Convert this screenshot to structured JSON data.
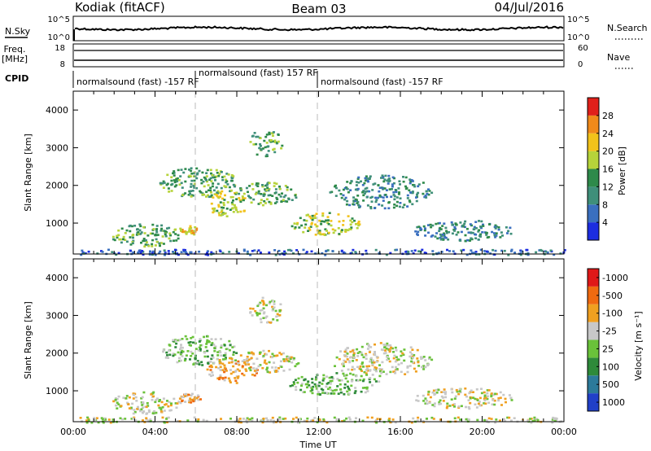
{
  "header": {
    "station": "Kodiak (fitACF)",
    "beam": "Beam 03",
    "date": "04/Jul/2016"
  },
  "top_panels": {
    "nsky": {
      "label": "N.Sky",
      "ticks": [
        "10^5",
        "10^0"
      ],
      "right_label": "N.Search",
      "right_ticks": [
        "10^5",
        "10^0"
      ]
    },
    "freq": {
      "label_line1": "Freq.",
      "label_line2": "[MHz]",
      "ticks": [
        "18",
        "8"
      ],
      "right_label": "Nave",
      "right_ticks": [
        "60",
        "0"
      ]
    },
    "cpid": {
      "label": "CPID",
      "segments": [
        {
          "text": "normalsound (fast) -157 RF",
          "start_hour": 0
        },
        {
          "text": "normalsound (fast) 157 RF",
          "start_hour": 6
        },
        {
          "text": "normalsound (fast) -157 RF",
          "start_hour": 12
        }
      ]
    }
  },
  "chart_data": [
    {
      "type": "heatmap",
      "name": "power",
      "ylabel": "Slant Range [km]",
      "xlim": [
        0,
        24
      ],
      "ylim": [
        180,
        4500
      ],
      "yticks": [
        1000,
        2000,
        3000,
        4000
      ],
      "colorbar": {
        "label": "Power [dB]",
        "ticks": [
          "4",
          "8",
          "12",
          "16",
          "20",
          "24",
          "28"
        ],
        "colors": [
          "#1c2de0",
          "#3a6fbf",
          "#3f8f7a",
          "#2e8a4a",
          "#b6d33a",
          "#f2c21a",
          "#f08a1a",
          "#e0201a"
        ]
      },
      "regions": [
        {
          "x": [
            1.8,
            5.2
          ],
          "y": [
            400,
            1000
          ],
          "level": 3
        },
        {
          "x": [
            5.1,
            6.2
          ],
          "y": [
            700,
            950
          ],
          "level": 5
        },
        {
          "x": [
            4.2,
            8.0
          ],
          "y": [
            1700,
            2500
          ],
          "level": 3
        },
        {
          "x": [
            6.5,
            8.5
          ],
          "y": [
            1200,
            1900
          ],
          "level": 4
        },
        {
          "x": [
            7.8,
            11.0
          ],
          "y": [
            1500,
            2100
          ],
          "level": 3
        },
        {
          "x": [
            8.5,
            10.2
          ],
          "y": [
            2800,
            3500
          ],
          "level": 3
        },
        {
          "x": [
            10.5,
            14.0
          ],
          "y": [
            700,
            1300
          ],
          "level": 4
        },
        {
          "x": [
            12.5,
            17.5
          ],
          "y": [
            1400,
            2300
          ],
          "level": 2
        },
        {
          "x": [
            16.5,
            21.5
          ],
          "y": [
            550,
            1100
          ],
          "level": 2
        },
        {
          "x": [
            0.3,
            24.0
          ],
          "y": [
            180,
            320
          ],
          "level": 1
        }
      ]
    },
    {
      "type": "heatmap",
      "name": "velocity",
      "ylabel": "Slant Range [km]",
      "xlabel": "Time UT",
      "xlim": [
        0,
        24
      ],
      "xticks": [
        "00:00",
        "04:00",
        "08:00",
        "12:00",
        "16:00",
        "20:00",
        "00:00"
      ],
      "ylim": [
        180,
        4500
      ],
      "yticks": [
        1000,
        2000,
        3000,
        4000
      ],
      "colorbar": {
        "label": "Velocity [m s⁻¹]",
        "ticks": [
          "1000",
          "500",
          "100",
          "25",
          "-25",
          "-100",
          "-500",
          "-1000"
        ],
        "colors": [
          "#2140c8",
          "#2c7a9a",
          "#2e8a3a",
          "#6ac23a",
          "#c8c8c8",
          "#f0a020",
          "#f06a10",
          "#e01818"
        ]
      },
      "regions": [
        {
          "x": [
            1.8,
            5.2
          ],
          "y": [
            400,
            1000
          ],
          "level": 4
        },
        {
          "x": [
            5.1,
            6.2
          ],
          "y": [
            700,
            950
          ],
          "level": 5
        },
        {
          "x": [
            4.2,
            8.0
          ],
          "y": [
            1700,
            2500
          ],
          "level": 3
        },
        {
          "x": [
            6.5,
            9.0
          ],
          "y": [
            1200,
            1900
          ],
          "level": 5
        },
        {
          "x": [
            7.8,
            11.0
          ],
          "y": [
            1500,
            2100
          ],
          "level": 4
        },
        {
          "x": [
            8.5,
            10.2
          ],
          "y": [
            2800,
            3500
          ],
          "level": 4
        },
        {
          "x": [
            10.5,
            15.0
          ],
          "y": [
            900,
            1500
          ],
          "level": 3
        },
        {
          "x": [
            12.5,
            17.5
          ],
          "y": [
            1400,
            2300
          ],
          "level": 4
        },
        {
          "x": [
            16.5,
            21.5
          ],
          "y": [
            550,
            1100
          ],
          "level": 4
        },
        {
          "x": [
            0.3,
            24.0
          ],
          "y": [
            180,
            320
          ],
          "level": 4
        }
      ]
    }
  ]
}
